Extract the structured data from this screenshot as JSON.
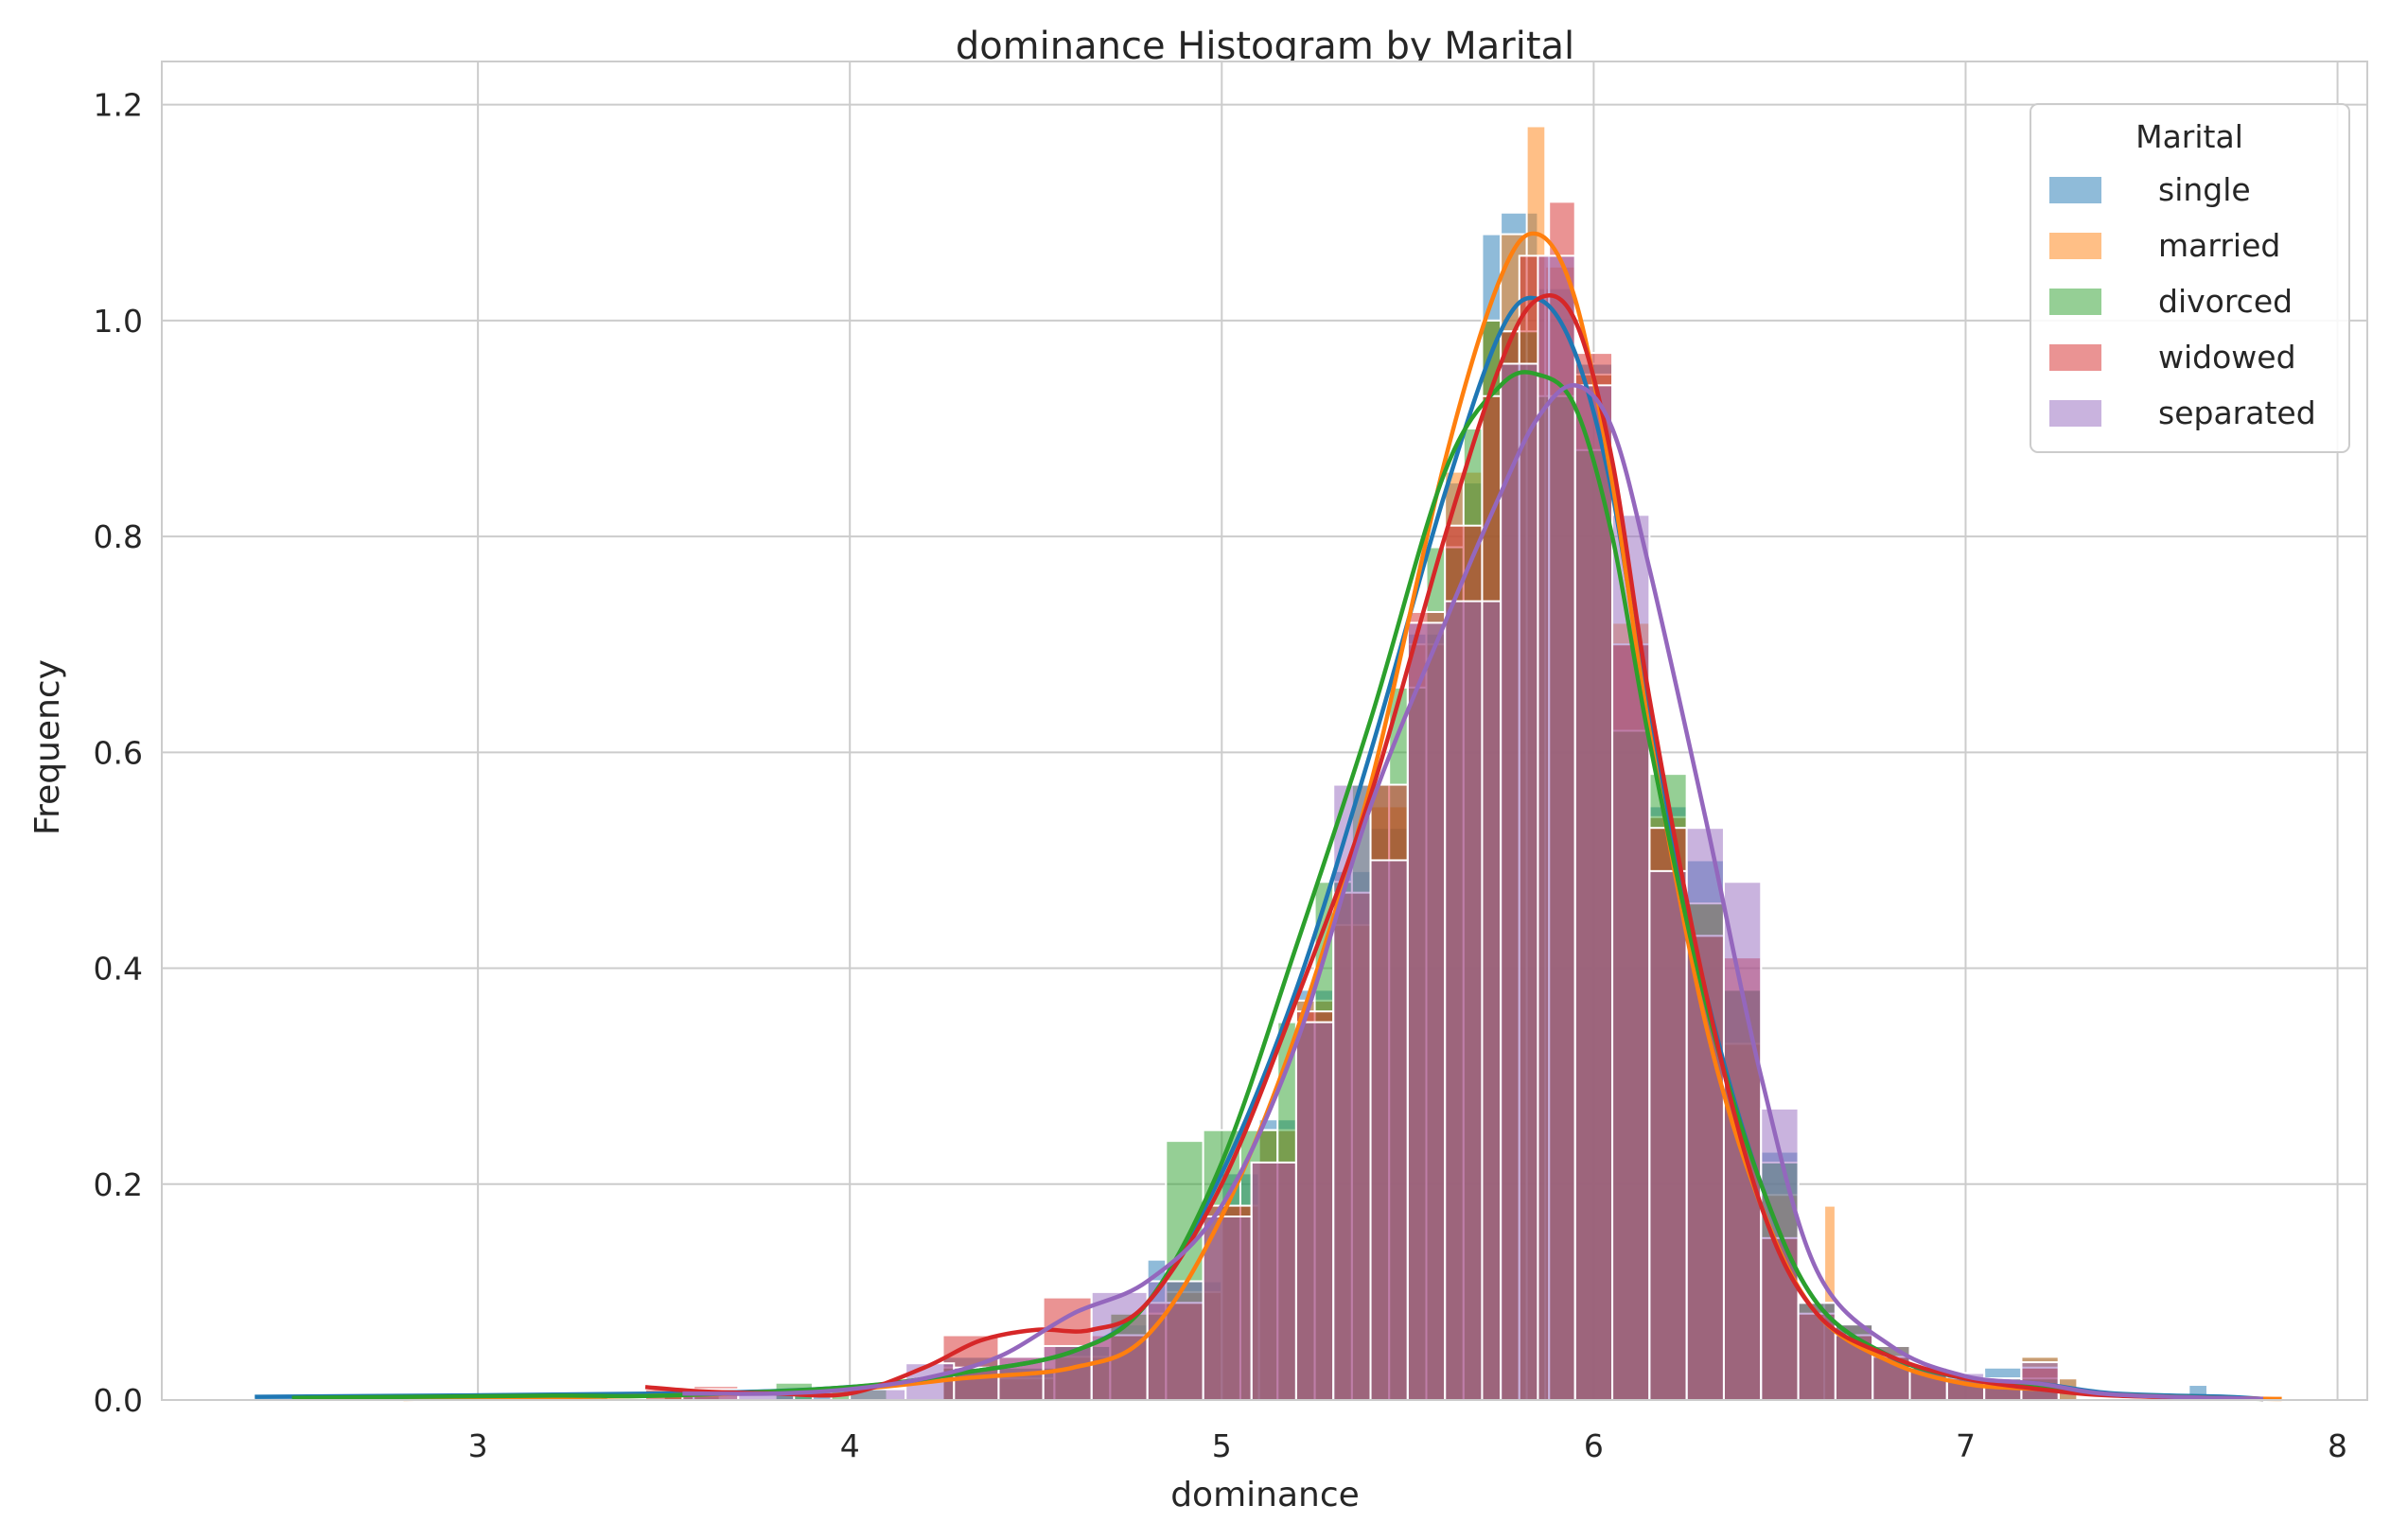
{
  "chart_data": {
    "type": "bar",
    "title": "dominance Histogram by Marital",
    "xlabel": "dominance",
    "ylabel": "Frequency",
    "xlim": [
      2.15,
      8.08
    ],
    "ylim": [
      0,
      1.24
    ],
    "xticks": [
      3,
      4,
      5,
      6,
      7,
      8
    ],
    "yticks": [
      0.0,
      0.2,
      0.4,
      0.6,
      0.8,
      1.0,
      1.2
    ],
    "grid": true,
    "legend": {
      "title": "Marital",
      "placement": "top-right"
    },
    "series": [
      {
        "name": "single",
        "color": "#1f77b4",
        "bins": [
          [
            2.4,
            2.55,
            0.004
          ],
          [
            2.55,
            2.7,
            0.004
          ],
          [
            2.7,
            2.85,
            0.004
          ],
          [
            3.5,
            3.65,
            0.006
          ],
          [
            3.8,
            3.95,
            0.01
          ],
          [
            4.25,
            4.4,
            0.04
          ],
          [
            4.4,
            4.55,
            0.03
          ],
          [
            4.55,
            4.7,
            0.05
          ],
          [
            4.7,
            4.8,
            0.07
          ],
          [
            4.8,
            4.85,
            0.13
          ],
          [
            4.85,
            5.0,
            0.11
          ],
          [
            5.0,
            5.1,
            0.21
          ],
          [
            5.1,
            5.2,
            0.26
          ],
          [
            5.2,
            5.3,
            0.38
          ],
          [
            5.3,
            5.4,
            0.49
          ],
          [
            5.4,
            5.5,
            0.53
          ],
          [
            5.5,
            5.6,
            0.71
          ],
          [
            5.6,
            5.7,
            0.85
          ],
          [
            5.7,
            5.75,
            1.08
          ],
          [
            5.75,
            5.85,
            1.1
          ],
          [
            5.85,
            5.95,
            1.03
          ],
          [
            5.95,
            6.05,
            0.96
          ],
          [
            6.05,
            6.15,
            0.7
          ],
          [
            6.15,
            6.25,
            0.55
          ],
          [
            6.25,
            6.35,
            0.5
          ],
          [
            6.35,
            6.45,
            0.38
          ],
          [
            6.45,
            6.55,
            0.23
          ],
          [
            6.55,
            6.65,
            0.09
          ],
          [
            6.65,
            6.75,
            0.07
          ],
          [
            6.75,
            6.85,
            0.04
          ],
          [
            6.85,
            6.95,
            0.03
          ],
          [
            6.95,
            7.05,
            0.02
          ],
          [
            7.05,
            7.15,
            0.03
          ],
          [
            7.15,
            7.25,
            0.04
          ],
          [
            7.25,
            7.3,
            0.02
          ],
          [
            7.6,
            7.65,
            0.014
          ]
        ],
        "kde_x": [
          2.4,
          3.5,
          4.0,
          4.3,
          4.6,
          4.8,
          5.0,
          5.2,
          5.4,
          5.6,
          5.75,
          5.85,
          5.95,
          6.05,
          6.15,
          6.3,
          6.45,
          6.6,
          6.8,
          7.0,
          7.2,
          7.4,
          7.7,
          7.8
        ],
        "kde_y": [
          0.003,
          0.006,
          0.012,
          0.025,
          0.045,
          0.09,
          0.21,
          0.38,
          0.6,
          0.84,
          0.99,
          1.02,
          0.97,
          0.84,
          0.63,
          0.38,
          0.2,
          0.09,
          0.04,
          0.02,
          0.015,
          0.006,
          0.003,
          0.001
        ]
      },
      {
        "name": "married",
        "color": "#ff7f0e",
        "bins": [
          [
            2.75,
            2.9,
            0.003
          ],
          [
            3.5,
            3.65,
            0.006
          ],
          [
            4.25,
            4.4,
            0.03
          ],
          [
            4.4,
            4.55,
            0.02
          ],
          [
            4.55,
            4.7,
            0.04
          ],
          [
            4.7,
            4.85,
            0.08
          ],
          [
            4.85,
            5.0,
            0.1
          ],
          [
            5.0,
            5.1,
            0.18
          ],
          [
            5.1,
            5.2,
            0.25
          ],
          [
            5.2,
            5.3,
            0.37
          ],
          [
            5.3,
            5.4,
            0.44
          ],
          [
            5.4,
            5.5,
            0.55
          ],
          [
            5.5,
            5.6,
            0.7
          ],
          [
            5.6,
            5.7,
            0.86
          ],
          [
            5.7,
            5.75,
            1.0
          ],
          [
            5.75,
            5.82,
            1.08
          ],
          [
            5.82,
            5.87,
            1.18
          ],
          [
            5.87,
            5.95,
            1.05
          ],
          [
            5.95,
            6.05,
            0.95
          ],
          [
            6.05,
            6.15,
            0.72
          ],
          [
            6.15,
            6.25,
            0.54
          ],
          [
            6.25,
            6.35,
            0.46
          ],
          [
            6.35,
            6.45,
            0.33
          ],
          [
            6.45,
            6.55,
            0.19
          ],
          [
            6.55,
            6.62,
            0.09
          ],
          [
            6.62,
            6.65,
            0.18
          ],
          [
            6.65,
            6.75,
            0.07
          ],
          [
            6.75,
            6.85,
            0.05
          ],
          [
            6.85,
            6.95,
            0.03
          ],
          [
            6.95,
            7.05,
            0.02
          ],
          [
            7.05,
            7.15,
            0.02
          ],
          [
            7.15,
            7.25,
            0.04
          ],
          [
            7.25,
            7.3,
            0.02
          ]
        ],
        "kde_x": [
          2.8,
          3.5,
          4.0,
          4.3,
          4.6,
          4.8,
          5.0,
          5.2,
          5.4,
          5.6,
          5.75,
          5.85,
          5.95,
          6.05,
          6.15,
          6.3,
          6.45,
          6.6,
          6.8,
          7.0,
          7.2,
          7.5,
          7.85
        ],
        "kde_y": [
          0.001,
          0.004,
          0.01,
          0.02,
          0.03,
          0.06,
          0.17,
          0.34,
          0.57,
          0.87,
          1.04,
          1.08,
          1.02,
          0.85,
          0.62,
          0.35,
          0.18,
          0.08,
          0.035,
          0.015,
          0.01,
          0.003,
          0.001
        ]
      },
      {
        "name": "divorced",
        "color": "#2ca02c",
        "bins": [
          [
            3.2,
            3.35,
            0.004
          ],
          [
            3.8,
            3.9,
            0.016
          ],
          [
            3.95,
            4.1,
            0.01
          ],
          [
            4.25,
            4.4,
            0.03
          ],
          [
            4.4,
            4.55,
            0.03
          ],
          [
            4.55,
            4.7,
            0.05
          ],
          [
            4.7,
            4.85,
            0.08
          ],
          [
            4.85,
            4.95,
            0.24
          ],
          [
            4.95,
            5.05,
            0.25
          ],
          [
            5.05,
            5.15,
            0.25
          ],
          [
            5.15,
            5.25,
            0.35
          ],
          [
            5.25,
            5.35,
            0.48
          ],
          [
            5.35,
            5.45,
            0.57
          ],
          [
            5.45,
            5.55,
            0.66
          ],
          [
            5.55,
            5.65,
            0.79
          ],
          [
            5.65,
            5.7,
            0.9
          ],
          [
            5.7,
            5.75,
            1.0
          ],
          [
            5.75,
            5.85,
            0.99
          ],
          [
            5.85,
            5.95,
            0.93
          ],
          [
            5.95,
            6.05,
            0.88
          ],
          [
            6.05,
            6.15,
            0.62
          ],
          [
            6.15,
            6.25,
            0.58
          ],
          [
            6.25,
            6.35,
            0.46
          ],
          [
            6.35,
            6.45,
            0.38
          ],
          [
            6.45,
            6.55,
            0.22
          ],
          [
            6.55,
            6.65,
            0.09
          ],
          [
            6.65,
            6.75,
            0.07
          ],
          [
            6.75,
            6.85,
            0.05
          ],
          [
            6.85,
            6.95,
            0.03
          ],
          [
            6.95,
            7.05,
            0.02
          ],
          [
            7.05,
            7.15,
            0.02
          ],
          [
            7.15,
            7.25,
            0.02
          ]
        ],
        "kde_x": [
          2.5,
          3.2,
          3.5,
          4.0,
          4.3,
          4.6,
          4.8,
          5.0,
          5.2,
          5.4,
          5.6,
          5.75,
          5.85,
          5.95,
          6.05,
          6.15,
          6.3,
          6.45,
          6.6,
          6.8,
          7.0,
          7.2,
          7.4,
          7.8
        ],
        "kde_y": [
          0.002,
          0.004,
          0.004,
          0.012,
          0.025,
          0.045,
          0.09,
          0.22,
          0.42,
          0.63,
          0.86,
          0.94,
          0.95,
          0.92,
          0.8,
          0.61,
          0.37,
          0.2,
          0.09,
          0.04,
          0.02,
          0.012,
          0.005,
          0.001
        ]
      },
      {
        "name": "widowed",
        "color": "#d62728",
        "bins": [
          [
            3.45,
            3.58,
            0.01
          ],
          [
            3.58,
            3.7,
            0.013
          ],
          [
            4.25,
            4.4,
            0.06
          ],
          [
            4.4,
            4.52,
            0.04
          ],
          [
            4.52,
            4.65,
            0.095
          ],
          [
            4.65,
            4.8,
            0.06
          ],
          [
            4.8,
            4.95,
            0.09
          ],
          [
            4.95,
            5.08,
            0.18
          ],
          [
            5.08,
            5.2,
            0.22
          ],
          [
            5.2,
            5.3,
            0.36
          ],
          [
            5.3,
            5.4,
            0.47
          ],
          [
            5.4,
            5.5,
            0.57
          ],
          [
            5.5,
            5.6,
            0.73
          ],
          [
            5.6,
            5.7,
            0.81
          ],
          [
            5.7,
            5.75,
            0.93
          ],
          [
            5.75,
            5.8,
            0.99
          ],
          [
            5.8,
            5.88,
            1.06
          ],
          [
            5.88,
            5.95,
            1.11
          ],
          [
            5.95,
            6.05,
            0.97
          ],
          [
            6.05,
            6.15,
            0.7
          ],
          [
            6.15,
            6.25,
            0.53
          ],
          [
            6.25,
            6.35,
            0.43
          ],
          [
            6.35,
            6.45,
            0.41
          ],
          [
            6.45,
            6.55,
            0.15
          ],
          [
            6.55,
            6.65,
            0.08
          ],
          [
            6.65,
            6.75,
            0.06
          ],
          [
            6.75,
            6.85,
            0.04
          ],
          [
            6.85,
            6.95,
            0.03
          ],
          [
            6.95,
            7.05,
            0.02
          ],
          [
            7.05,
            7.15,
            0.015
          ],
          [
            7.15,
            7.25,
            0.03
          ]
        ],
        "kde_x": [
          3.45,
          3.6,
          3.8,
          4.0,
          4.2,
          4.35,
          4.5,
          4.65,
          4.8,
          5.0,
          5.2,
          5.4,
          5.6,
          5.75,
          5.85,
          5.95,
          6.05,
          6.15,
          6.3,
          6.45,
          6.6,
          6.8,
          7.0,
          7.2,
          7.4,
          7.8
        ],
        "kde_y": [
          0.012,
          0.008,
          0.006,
          0.006,
          0.03,
          0.055,
          0.065,
          0.065,
          0.09,
          0.2,
          0.37,
          0.56,
          0.8,
          0.96,
          1.02,
          1.0,
          0.87,
          0.65,
          0.38,
          0.18,
          0.08,
          0.04,
          0.02,
          0.01,
          0.004,
          0.001
        ]
      },
      {
        "name": "separated",
        "color": "#9467bd",
        "bins": [
          [
            3.55,
            3.7,
            0.01
          ],
          [
            3.7,
            3.85,
            0.008
          ],
          [
            4.0,
            4.15,
            0.01
          ],
          [
            4.15,
            4.28,
            0.034
          ],
          [
            4.28,
            4.4,
            0.03
          ],
          [
            4.4,
            4.52,
            0.04
          ],
          [
            4.52,
            4.65,
            0.05
          ],
          [
            4.65,
            4.8,
            0.1
          ],
          [
            4.8,
            4.95,
            0.11
          ],
          [
            4.95,
            5.08,
            0.17
          ],
          [
            5.08,
            5.2,
            0.22
          ],
          [
            5.2,
            5.3,
            0.35
          ],
          [
            5.3,
            5.4,
            0.57
          ],
          [
            5.4,
            5.5,
            0.5
          ],
          [
            5.5,
            5.6,
            0.72
          ],
          [
            5.6,
            5.7,
            0.74
          ],
          [
            5.7,
            5.75,
            0.74
          ],
          [
            5.75,
            5.85,
            0.96
          ],
          [
            5.85,
            5.95,
            1.06
          ],
          [
            5.95,
            6.05,
            0.94
          ],
          [
            6.05,
            6.15,
            0.82
          ],
          [
            6.15,
            6.25,
            0.49
          ],
          [
            6.25,
            6.35,
            0.53
          ],
          [
            6.35,
            6.45,
            0.48
          ],
          [
            6.45,
            6.55,
            0.27
          ],
          [
            6.55,
            6.65,
            0.09
          ],
          [
            6.65,
            6.75,
            0.07
          ],
          [
            6.75,
            6.85,
            0.05
          ],
          [
            6.85,
            6.95,
            0.03
          ],
          [
            6.95,
            7.05,
            0.025
          ],
          [
            7.05,
            7.15,
            0.02
          ],
          [
            7.15,
            7.25,
            0.035
          ]
        ],
        "kde_x": [
          3.55,
          3.8,
          4.0,
          4.2,
          4.4,
          4.6,
          4.8,
          5.0,
          5.2,
          5.4,
          5.6,
          5.75,
          5.85,
          5.95,
          6.05,
          6.15,
          6.3,
          6.45,
          6.6,
          6.8,
          7.0,
          7.2,
          7.4,
          7.8
        ],
        "kde_y": [
          0.006,
          0.006,
          0.01,
          0.02,
          0.04,
          0.08,
          0.11,
          0.18,
          0.33,
          0.55,
          0.72,
          0.84,
          0.91,
          0.94,
          0.9,
          0.77,
          0.54,
          0.3,
          0.12,
          0.05,
          0.022,
          0.015,
          0.005,
          0.001
        ]
      }
    ]
  }
}
